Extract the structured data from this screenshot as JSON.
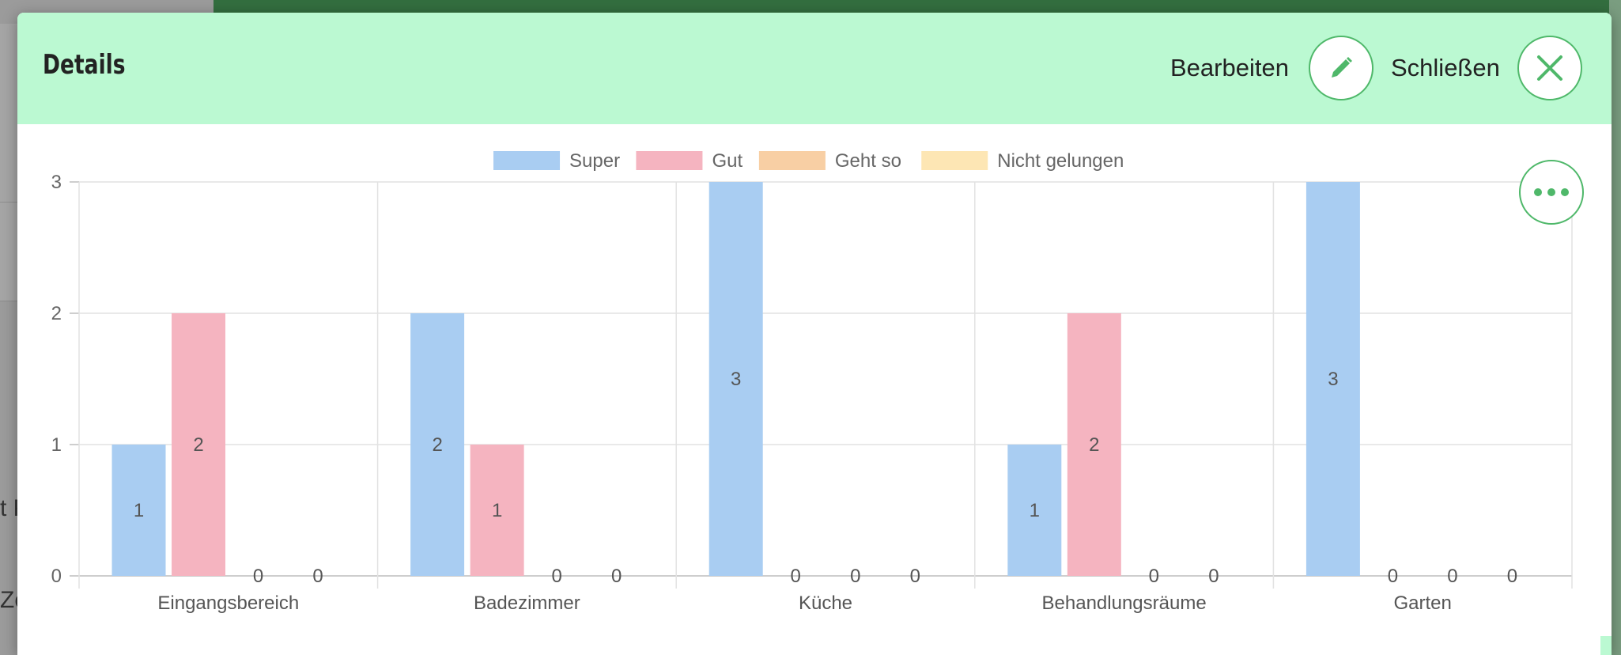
{
  "background": {
    "partial_texts": [
      "t P",
      "Zo"
    ]
  },
  "modal": {
    "title": "Details",
    "edit_label": "Bearbeiten",
    "close_label": "Schließen",
    "more_icon": "more-dots-icon",
    "edit_icon": "pencil-icon",
    "close_icon": "close-icon",
    "accent_color": "#4fb86a",
    "header_color": "#bbf9d2"
  },
  "chart_data": {
    "type": "bar",
    "categories": [
      "Eingangsbereich",
      "Badezimmer",
      "Küche",
      "Behandlungsräume",
      "Garten"
    ],
    "series": [
      {
        "name": "Super",
        "color": "#a9cdf2",
        "values": [
          1,
          2,
          3,
          1,
          3
        ]
      },
      {
        "name": "Gut",
        "color": "#f5b4c0",
        "values": [
          2,
          1,
          0,
          2,
          0
        ]
      },
      {
        "name": "Geht so",
        "color": "#f8cfa4",
        "values": [
          0,
          0,
          0,
          0,
          0
        ]
      },
      {
        "name": "Nicht gelungen",
        "color": "#fde6b4",
        "values": [
          0,
          0,
          0,
          0,
          0
        ]
      }
    ],
    "ylim": [
      0,
      3
    ],
    "yticks": [
      "0",
      "1",
      "2",
      "3"
    ],
    "grid": true,
    "legend": "top-center",
    "data_labels": true
  }
}
